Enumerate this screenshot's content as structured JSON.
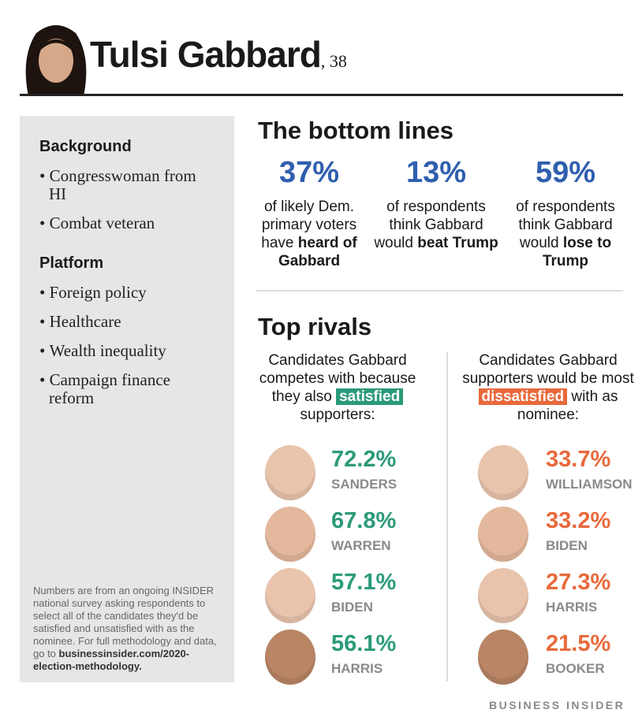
{
  "header": {
    "name": "Tulsi Gabbard",
    "age": ", 38"
  },
  "sidebar": {
    "sections": [
      {
        "title": "Background",
        "items": [
          "Congresswoman from HI",
          "Combat veteran"
        ]
      },
      {
        "title": "Platform",
        "items": [
          "Foreign policy",
          "Healthcare",
          "Wealth inequality",
          "Campaign finance reform"
        ]
      }
    ],
    "footnote": {
      "text": "Numbers are from an ongoing INSIDER national survey asking respondents to select all of the candidates they'd be satisfied and unsatisfied with as the nominee. For full methodology and data, go to",
      "bold": "businessinsider.com/2020-election-methodology."
    }
  },
  "bottom_lines": {
    "title": "The bottom lines",
    "stats": [
      {
        "value": "37%",
        "text": "of likely Dem. primary voters have",
        "bold": "heard of Gabbard"
      },
      {
        "value": "13%",
        "text": "of respondents think Gabbard would",
        "bold": "beat Trump"
      },
      {
        "value": "59%",
        "text": "of respondents think Gabbard would",
        "bold": "lose to Trump"
      }
    ]
  },
  "top_rivals": {
    "title": "Top rivals",
    "columns": [
      {
        "caption_before": "Candidates Gabbard competes with because they also",
        "highlight": "satisfied",
        "caption_after": "supporters:",
        "rivals": [
          {
            "pct": "72.2%",
            "name": "SANDERS"
          },
          {
            "pct": "67.8%",
            "name": "WARREN"
          },
          {
            "pct": "57.1%",
            "name": "BIDEN"
          },
          {
            "pct": "56.1%",
            "name": "HARRIS"
          }
        ]
      },
      {
        "caption_before": "Candidates Gabbard supporters would be most",
        "highlight": "dissatisfied",
        "caption_after": "with as nominee:",
        "rivals": [
          {
            "pct": "33.7%",
            "name": "WILLIAMSON"
          },
          {
            "pct": "33.2%",
            "name": "BIDEN"
          },
          {
            "pct": "27.3%",
            "name": "HARRIS"
          },
          {
            "pct": "21.5%",
            "name": "BOOKER"
          }
        ]
      }
    ]
  },
  "logo": "BUSINESS INSIDER"
}
